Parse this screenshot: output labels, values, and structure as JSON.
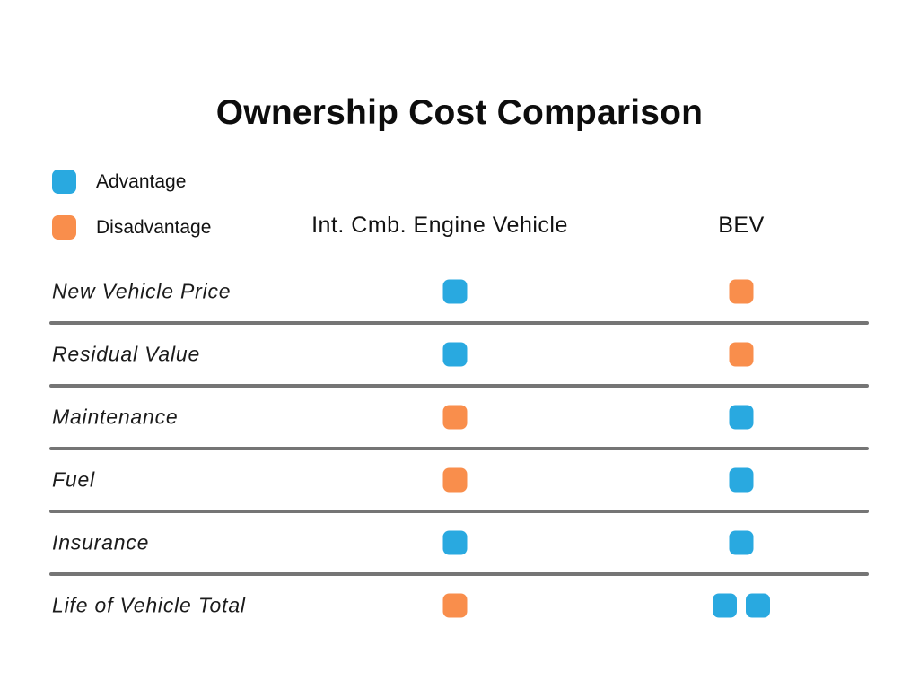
{
  "title": "Ownership Cost Comparison",
  "colors": {
    "advantage": "#29a9e0",
    "disadvantage": "#f98e4c",
    "divider": "#757575"
  },
  "legend": [
    {
      "type": "advantage",
      "label": "Advantage"
    },
    {
      "type": "disadvantage",
      "label": "Disadvantage"
    }
  ],
  "columns": {
    "ice": "Int. Cmb. Engine Vehicle",
    "bev": "BEV"
  },
  "rows": [
    {
      "label": "New Vehicle Price",
      "ice": [
        "advantage"
      ],
      "bev": [
        "disadvantage"
      ]
    },
    {
      "label": "Residual Value",
      "ice": [
        "advantage"
      ],
      "bev": [
        "disadvantage"
      ]
    },
    {
      "label": "Maintenance",
      "ice": [
        "disadvantage"
      ],
      "bev": [
        "advantage"
      ]
    },
    {
      "label": "Fuel",
      "ice": [
        "disadvantage"
      ],
      "bev": [
        "advantage"
      ]
    },
    {
      "label": "Insurance",
      "ice": [
        "advantage"
      ],
      "bev": [
        "advantage"
      ]
    },
    {
      "label": "Life of Vehicle Total",
      "ice": [
        "disadvantage"
      ],
      "bev": [
        "advantage",
        "advantage"
      ]
    }
  ],
  "chart_data": {
    "type": "table",
    "title": "Ownership Cost Comparison",
    "legend_entries": [
      "Advantage",
      "Disadvantage"
    ],
    "legend_position": "top-left",
    "columns": [
      "Int. Cmb. Engine Vehicle",
      "BEV"
    ],
    "categories": [
      "New Vehicle Price",
      "Residual Value",
      "Maintenance",
      "Fuel",
      "Insurance",
      "Life of Vehicle Total"
    ],
    "series": [
      {
        "name": "Int. Cmb. Engine Vehicle",
        "values": [
          "advantage",
          "advantage",
          "disadvantage",
          "disadvantage",
          "advantage",
          "disadvantage"
        ]
      },
      {
        "name": "BEV",
        "values": [
          "disadvantage",
          "disadvantage",
          "advantage",
          "advantage",
          "advantage",
          "advantage x2"
        ]
      }
    ]
  }
}
